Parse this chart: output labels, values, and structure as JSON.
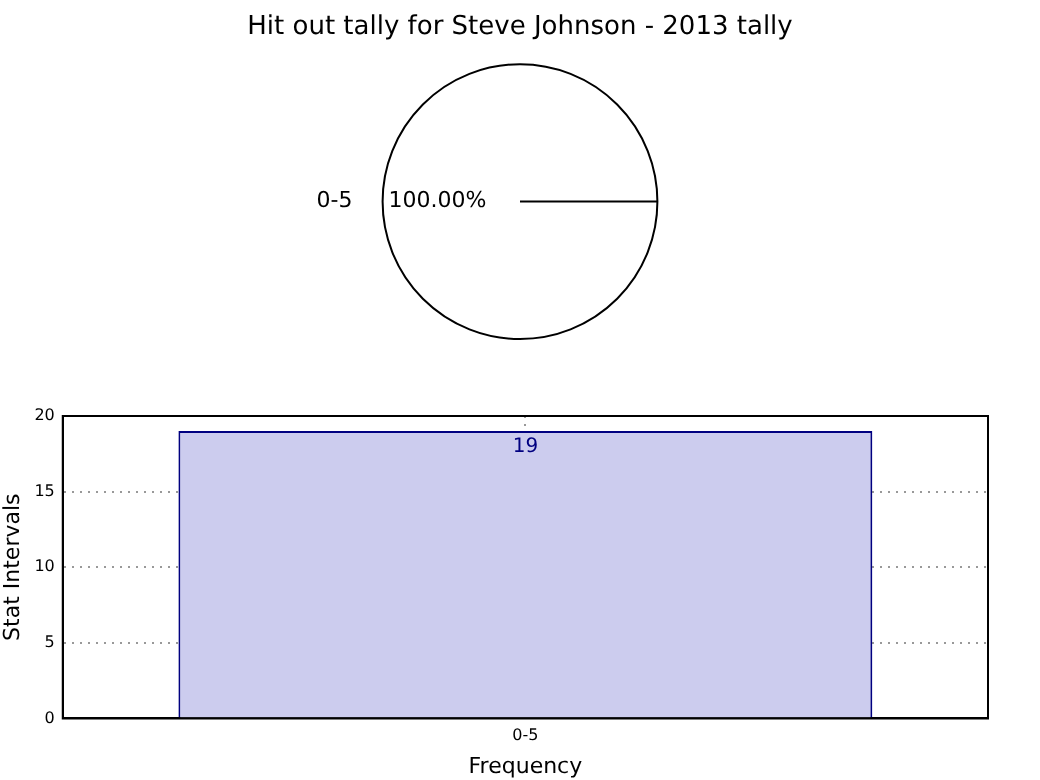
{
  "chart_data": [
    {
      "type": "pie",
      "title": "Hit out tally for Steve Johnson - 2013 tally",
      "categories": [
        "0-5"
      ],
      "values": [
        100
      ],
      "colors": [
        "#ffffff"
      ],
      "value_labels": [
        "100.00%"
      ]
    },
    {
      "type": "bar",
      "categories": [
        "0-5"
      ],
      "values": [
        19
      ],
      "color": "#ccccee",
      "data_labels": true,
      "ylim": [
        0,
        20
      ],
      "yticks": [
        0,
        5,
        10,
        15,
        20
      ],
      "grid": true,
      "xlabel": "Frequency",
      "ylabel": "Stat Intervals"
    }
  ]
}
